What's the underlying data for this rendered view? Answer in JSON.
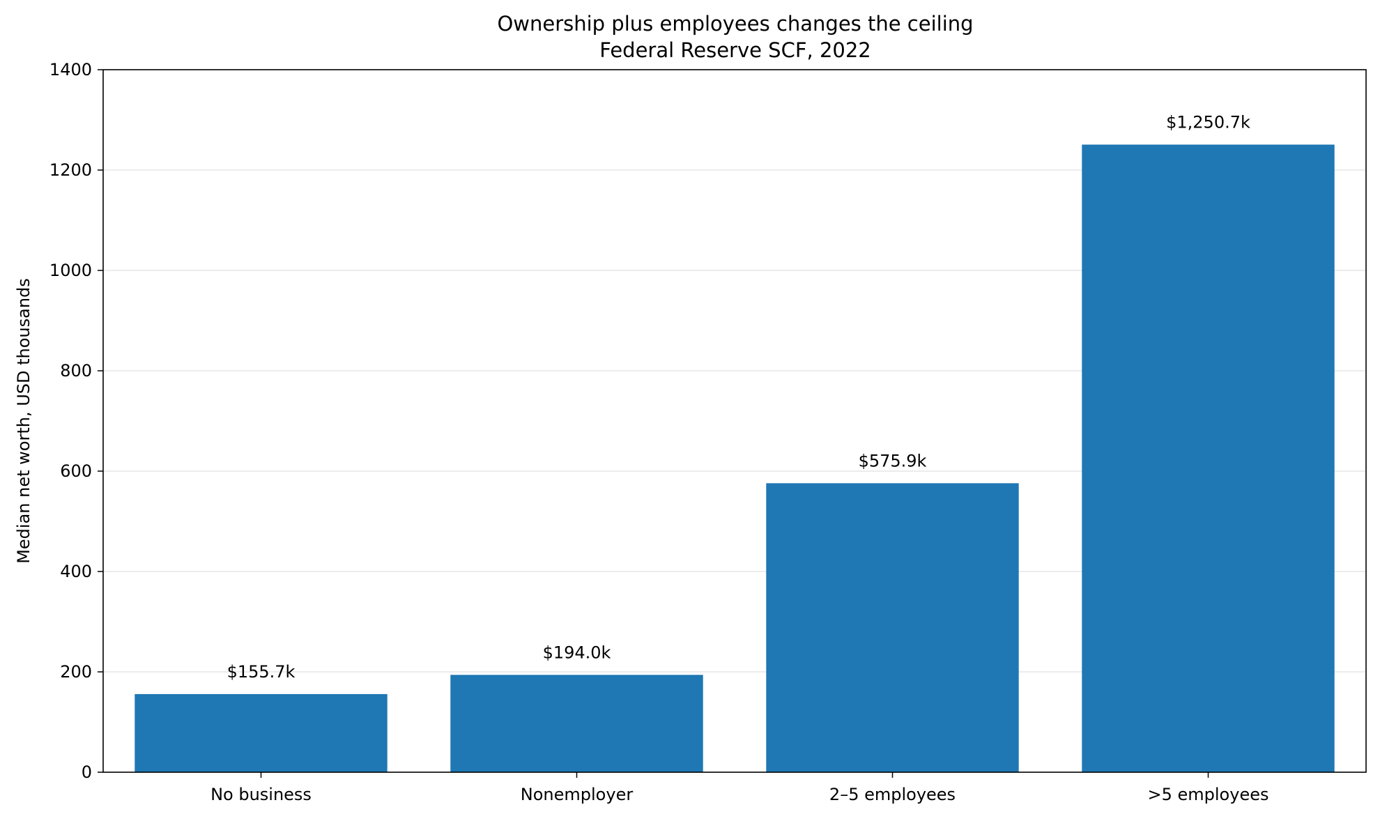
{
  "chart_data": {
    "type": "bar",
    "title": "Ownership plus employees changes the ceiling",
    "subtitle": "Federal Reserve SCF, 2022",
    "xlabel": "",
    "ylabel": "Median net worth, USD thousands",
    "categories": [
      "No business",
      "Nonemployer",
      "2–5 employees",
      ">5 employees"
    ],
    "values": [
      155.7,
      194.0,
      575.9,
      1250.7
    ],
    "data_labels": [
      "$155.7k",
      "$194.0k",
      "$575.9k",
      "$1,250.7k"
    ],
    "ylim": [
      0,
      1400
    ],
    "yticks": [
      0,
      200,
      400,
      600,
      800,
      1000,
      1200,
      1400
    ],
    "grid": "y",
    "bar_color": "#1f77b4",
    "grid_color": "#e6e6e6"
  }
}
